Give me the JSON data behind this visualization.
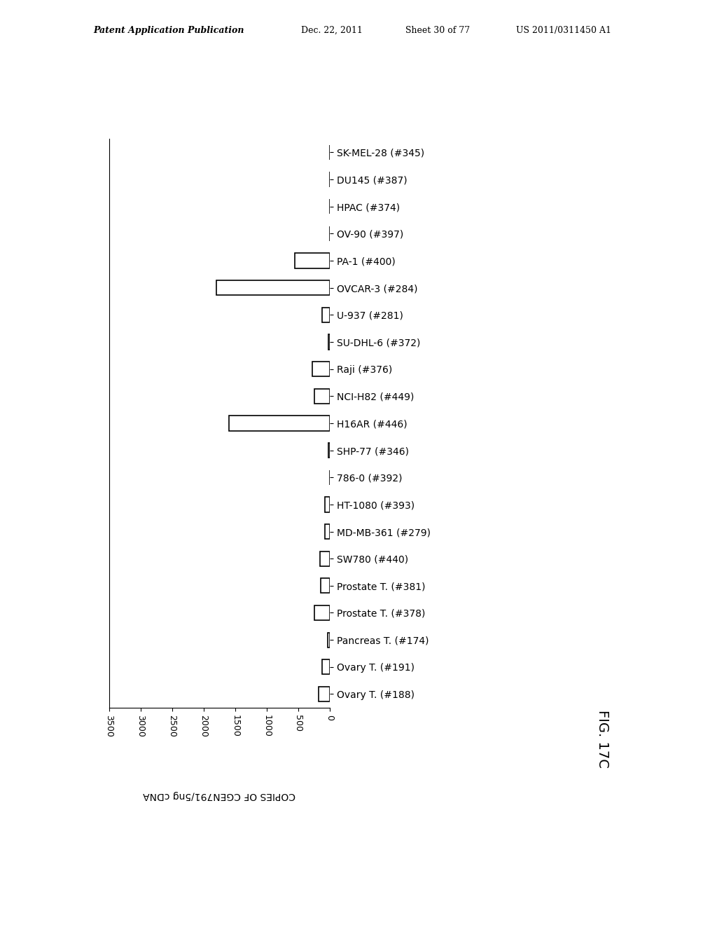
{
  "categories": [
    "SK-MEL-28 (#345)",
    "DU145 (#387)",
    "HPAC (#374)",
    "OV-90 (#397)",
    "PA-1 (#400)",
    "OVCAR-3 (#284)",
    "U-937 (#281)",
    "SU-DHL-6 (#372)",
    "Raji (#376)",
    "NCI-H82 (#449)",
    "H16AR (#446)",
    "SHP-77 (#346)",
    "786-0 (#392)",
    "HT-1080 (#393)",
    "MD-MB-361 (#279)",
    "SW780 (#440)",
    "Prostate T. (#381)",
    "Prostate T. (#378)",
    "Pancreas T. (#174)",
    "Ovary T. (#191)",
    "Ovary T. (#188)"
  ],
  "values": [
    0,
    0,
    0,
    0,
    550,
    1800,
    120,
    20,
    280,
    250,
    1600,
    20,
    0,
    80,
    80,
    160,
    150,
    250,
    30,
    120,
    180
  ],
  "xlim_max": 3500,
  "xticks": [
    0,
    500,
    1000,
    1500,
    2000,
    2500,
    3000,
    3500
  ],
  "xlabel": "COPIES OF CGEN791/5ng cDNA",
  "bar_color": "#ffffff",
  "bar_edgecolor": "#000000",
  "figure_label": "FIG. 17C",
  "background_color": "#ffffff",
  "header_left": "Patent Application Publication",
  "header_mid1": "Dec. 22, 2011",
  "header_mid2": "Sheet 30 of 77",
  "header_right": "US 2011/0311450 A1"
}
